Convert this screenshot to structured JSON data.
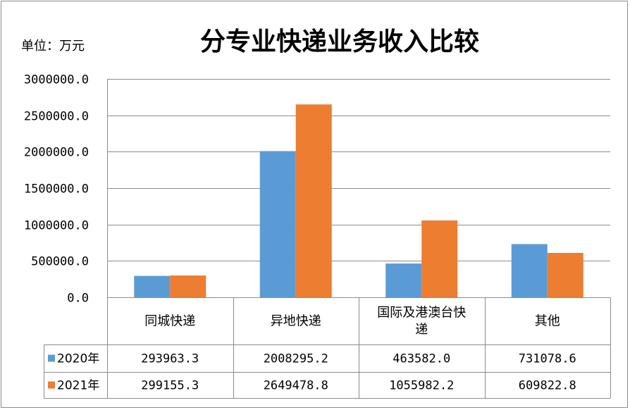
{
  "unit_label": "单位：万元",
  "chart_data": {
    "type": "bar",
    "title": "分专业快递业务收入比较",
    "categories": [
      [
        "同城快递"
      ],
      [
        "异地快递"
      ],
      [
        "国际及港澳台快",
        "递"
      ],
      [
        "其他"
      ]
    ],
    "series": [
      {
        "name": "2020年",
        "color": "#5b9bd5",
        "values": [
          293963.3,
          2008295.2,
          463582.0,
          731078.6
        ],
        "labels": [
          "293963.3",
          "2008295.2",
          "463582.0",
          "731078.6"
        ]
      },
      {
        "name": "2021年",
        "color": "#ed7d31",
        "values": [
          299155.3,
          2649478.8,
          1055982.2,
          609822.8
        ],
        "labels": [
          "299155.3",
          "2649478.8",
          "1055982.2",
          "609822.8"
        ]
      }
    ],
    "ylim": [
      0,
      3000000
    ],
    "yticks": [
      0,
      500000,
      1000000,
      1500000,
      2000000,
      2500000,
      3000000
    ],
    "ytick_labels": [
      "0.0",
      "500000.0",
      "1000000.0",
      "1500000.0",
      "2000000.0",
      "2500000.0",
      "3000000.0"
    ],
    "grid": true,
    "legend": "data-table"
  }
}
